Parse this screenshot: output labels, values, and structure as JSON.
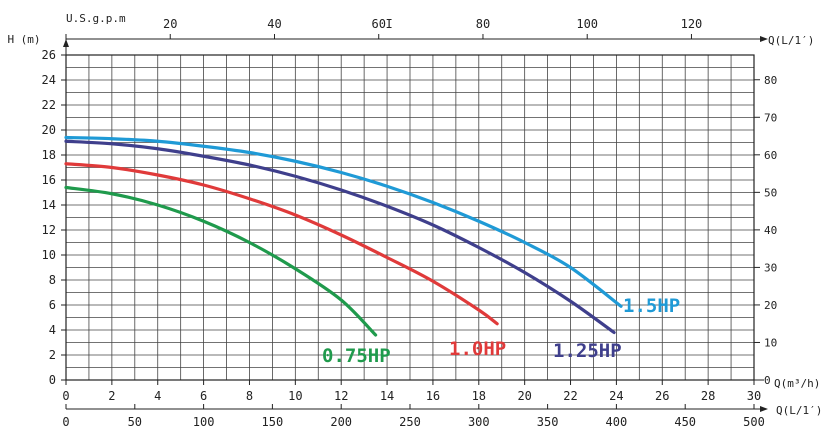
{
  "chart_data": {
    "type": "line",
    "axes": {
      "left": {
        "title": "H (m)",
        "min": 0,
        "max": 26,
        "ticks": [
          0,
          2,
          4,
          6,
          8,
          10,
          12,
          14,
          16,
          18,
          20,
          22,
          24,
          26
        ]
      },
      "right": {
        "title": "",
        "min": 0,
        "max": 86.6,
        "ticks": [
          0,
          10,
          20,
          30,
          40,
          50,
          60,
          70,
          80
        ]
      },
      "bottom_m3h": {
        "title": "Q(m³/h)",
        "min": 0,
        "max": 30,
        "ticks": [
          0,
          2,
          4,
          6,
          8,
          10,
          12,
          14,
          16,
          18,
          20,
          22,
          24,
          26,
          28,
          30
        ]
      },
      "bottom_lpm": {
        "title": "Q(L/1′)",
        "min": 0,
        "max": 500,
        "ticks": [
          0,
          50,
          100,
          150,
          200,
          250,
          300,
          350,
          400,
          450,
          500
        ]
      },
      "top_usgpm": {
        "title": "U.S.g.p.m",
        "min": 0,
        "max": 132,
        "ticks": [
          20,
          40,
          60,
          80,
          100,
          120
        ]
      },
      "top_right_title": "Q(L/1′)",
      "top_marker": "I"
    },
    "grid": true,
    "series": [
      {
        "name": "0.75HP",
        "color": "#1f9a4c",
        "points": [
          [
            0,
            15.4
          ],
          [
            2,
            14.9
          ],
          [
            4,
            14.0
          ],
          [
            6,
            12.7
          ],
          [
            8,
            11.0
          ],
          [
            10,
            8.9
          ],
          [
            12,
            6.4
          ],
          [
            13.5,
            3.6
          ]
        ]
      },
      {
        "name": "1.0HP",
        "color": "#e03a3a",
        "points": [
          [
            0,
            17.3
          ],
          [
            2,
            17.0
          ],
          [
            4,
            16.4
          ],
          [
            6,
            15.6
          ],
          [
            8,
            14.5
          ],
          [
            10,
            13.2
          ],
          [
            12,
            11.6
          ],
          [
            14,
            9.8
          ],
          [
            16,
            7.9
          ],
          [
            18,
            5.6
          ],
          [
            18.8,
            4.5
          ]
        ]
      },
      {
        "name": "1.25HP",
        "color": "#3f3f8c",
        "points": [
          [
            0,
            19.1
          ],
          [
            2,
            18.9
          ],
          [
            4,
            18.5
          ],
          [
            6,
            17.9
          ],
          [
            8,
            17.2
          ],
          [
            10,
            16.3
          ],
          [
            12,
            15.2
          ],
          [
            14,
            13.9
          ],
          [
            16,
            12.4
          ],
          [
            18,
            10.6
          ],
          [
            20,
            8.6
          ],
          [
            22,
            6.3
          ],
          [
            23.9,
            3.8
          ]
        ]
      },
      {
        "name": "1.5HP",
        "color": "#1f9ad6",
        "points": [
          [
            0,
            19.4
          ],
          [
            2,
            19.3
          ],
          [
            4,
            19.1
          ],
          [
            6,
            18.7
          ],
          [
            8,
            18.2
          ],
          [
            10,
            17.5
          ],
          [
            12,
            16.6
          ],
          [
            14,
            15.5
          ],
          [
            16,
            14.2
          ],
          [
            18,
            12.7
          ],
          [
            20,
            11.0
          ],
          [
            22,
            9.0
          ],
          [
            24.2,
            5.9
          ]
        ]
      }
    ]
  }
}
